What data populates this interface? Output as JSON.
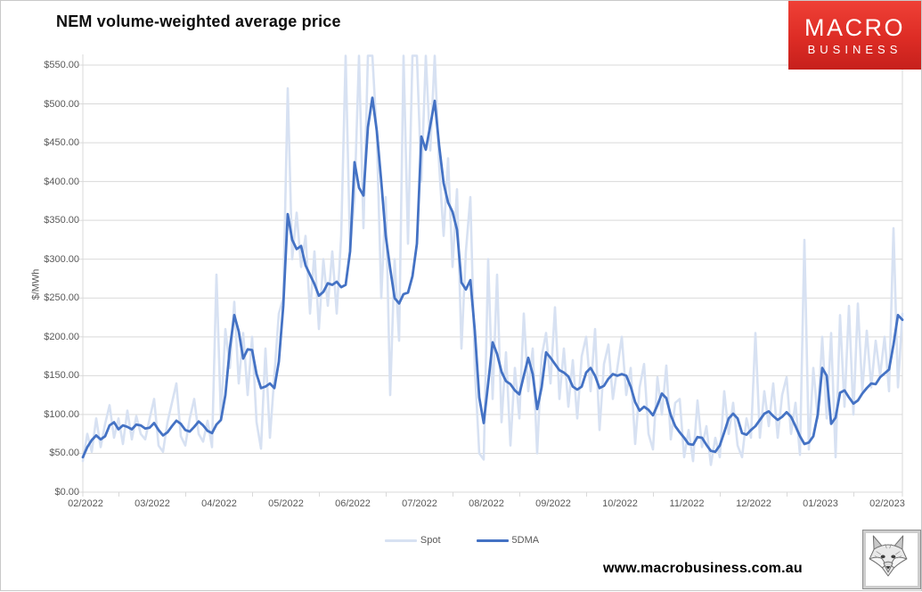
{
  "header": {
    "title": "NEM volume-weighted average price"
  },
  "logo": {
    "line1": "MACRO",
    "line2": "BUSINESS",
    "bg_top": "#ef4036",
    "bg_bottom": "#c6201c",
    "text_color": "#ffffff"
  },
  "footer": {
    "url": "www.macrobusiness.com.au",
    "fox_icon": "fox-head-sketch-icon"
  },
  "colors": {
    "gridline": "#d9d9d9",
    "axis_text": "#595959",
    "plot_border": "#d9d9d9"
  },
  "chart_data": {
    "type": "line",
    "title": "NEM volume-weighted average price",
    "xlabel": "",
    "ylabel": "$/MWh",
    "ylim": [
      0,
      550
    ],
    "grid": "horizontal",
    "legend_position": "bottom-center",
    "y_tick_labels": [
      "$550.00",
      "$500.00",
      "$450.00",
      "$400.00",
      "$350.00",
      "$300.00",
      "$250.00",
      "$200.00",
      "$150.00",
      "$100.00",
      "$50.00",
      "$0.00"
    ],
    "y_ticks": [
      550,
      500,
      450,
      400,
      350,
      300,
      250,
      200,
      150,
      100,
      50,
      0
    ],
    "x_tick_labels": [
      "02/2022",
      "03/2022",
      "04/2022",
      "05/2022",
      "06/2022",
      "07/2022",
      "08/2022",
      "09/2022",
      "10/2022",
      "11/2022",
      "12/2022",
      "01/2023",
      "02/2023"
    ],
    "sampling_note": "values sampled ~every 2 days, Feb 2022 - Feb 2023; values of 562 represent daily spot spikes clipped above the $550 axis maximum",
    "series": [
      {
        "name": "Spot",
        "color": "#d7e1f2",
        "values": [
          40,
          75,
          52,
          95,
          58,
          88,
          112,
          70,
          95,
          62,
          105,
          68,
          98,
          75,
          68,
          95,
          120,
          60,
          52,
          90,
          115,
          140,
          72,
          60,
          95,
          120,
          75,
          65,
          92,
          58,
          280,
          95,
          210,
          160,
          245,
          140,
          205,
          125,
          200,
          90,
          56,
          185,
          70,
          150,
          230,
          250,
          520,
          300,
          360,
          290,
          330,
          230,
          310,
          210,
          300,
          240,
          310,
          230,
          330,
          562,
          310,
          380,
          562,
          340,
          562,
          562,
          460,
          250,
          380,
          125,
          300,
          195,
          562,
          320,
          562,
          562,
          400,
          562,
          440,
          562,
          420,
          330,
          430,
          290,
          390,
          185,
          310,
          380,
          160,
          50,
          42,
          300,
          120,
          280,
          90,
          180,
          60,
          160,
          95,
          230,
          130,
          185,
          50,
          175,
          205,
          140,
          238,
          120,
          185,
          110,
          170,
          95,
          175,
          200,
          130,
          210,
          80,
          165,
          190,
          120,
          160,
          200,
          125,
          160,
          62,
          135,
          165,
          75,
          55,
          148,
          100,
          163,
          68,
          115,
          120,
          45,
          80,
          40,
          118,
          58,
          85,
          35,
          70,
          45,
          130,
          75,
          115,
          60,
          45,
          95,
          70,
          205,
          70,
          130,
          85,
          140,
          70,
          125,
          148,
          75,
          115,
          48,
          325,
          55,
          160,
          95,
          200,
          95,
          205,
          45,
          228,
          110,
          240,
          100,
          243,
          130,
          208,
          135,
          195,
          150,
          200,
          130,
          340,
          135,
          230
        ]
      },
      {
        "name": "5DMA",
        "color": "#4472c4",
        "values": [
          45,
          58,
          67,
          73,
          68,
          72,
          86,
          90,
          81,
          86,
          84,
          81,
          87,
          86,
          82,
          83,
          89,
          80,
          73,
          77,
          85,
          92,
          88,
          80,
          78,
          84,
          91,
          86,
          79,
          76,
          87,
          93,
          125,
          185,
          228,
          207,
          172,
          184,
          183,
          152,
          134,
          136,
          140,
          134,
          168,
          240,
          358,
          325,
          313,
          317,
          292,
          280,
          268,
          253,
          258,
          269,
          267,
          271,
          264,
          267,
          310,
          425,
          392,
          382,
          470,
          508,
          465,
          400,
          330,
          288,
          250,
          243,
          255,
          257,
          278,
          320,
          458,
          441,
          472,
          504,
          446,
          398,
          373,
          361,
          338,
          270,
          261,
          273,
          208,
          122,
          89,
          140,
          193,
          178,
          155,
          143,
          139,
          131,
          126,
          150,
          173,
          152,
          107,
          135,
          180,
          173,
          165,
          157,
          154,
          149,
          136,
          132,
          136,
          154,
          160,
          150,
          134,
          137,
          146,
          152,
          150,
          152,
          150,
          136,
          116,
          105,
          110,
          106,
          99,
          112,
          127,
          121,
          99,
          85,
          77,
          70,
          62,
          61,
          71,
          70,
          61,
          53,
          52,
          60,
          77,
          95,
          101,
          95,
          76,
          74,
          80,
          85,
          93,
          101,
          104,
          98,
          93,
          97,
          103,
          97,
          85,
          72,
          62,
          64,
          72,
          100,
          160,
          150,
          88,
          96,
          128,
          131,
          122,
          114,
          118,
          127,
          134,
          140,
          139,
          148,
          153,
          158,
          190,
          228,
          222
        ]
      }
    ]
  }
}
